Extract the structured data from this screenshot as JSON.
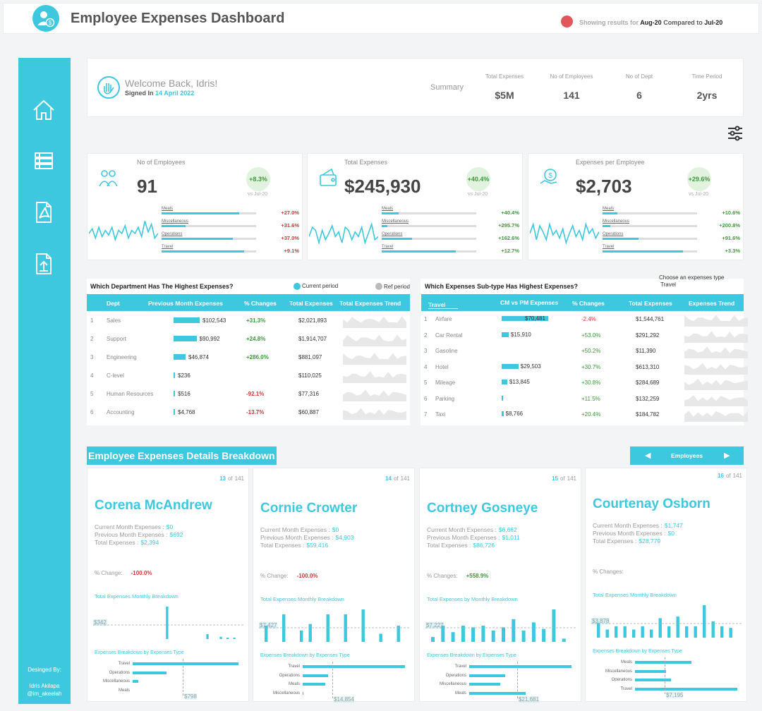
{
  "header": {
    "title": "Employee Expenses Dashboard",
    "status_prefix": "Showing results for",
    "status_period": "Aug-20",
    "status_mid": "Compared to",
    "status_ref": "Jul-20"
  },
  "sidebar": {
    "credit_label": "Desinged By:",
    "credit_name": "Idris Akilapa",
    "credit_handle": "@im_akeelah"
  },
  "welcome": {
    "greeting": "Welcome Back, Idris!",
    "signed_prefix": "Signed In",
    "signed_date": "14 April 2022",
    "summary_label": "Summary",
    "stats": [
      {
        "label": "Total Expenses",
        "value": "$5M"
      },
      {
        "label": "No of Employees",
        "value": "141"
      },
      {
        "label": "No of Dept",
        "value": "6"
      },
      {
        "label": "Time Period",
        "value": "2yrs"
      }
    ]
  },
  "kpis": [
    {
      "title": "No of Employees",
      "value": "91",
      "change": "+8.3%",
      "vs": "vs Jul-20",
      "rows": [
        {
          "label": "Meals",
          "pct": "+27.0%",
          "fill": 0.82,
          "color": "red"
        },
        {
          "label": "Miscellaneous",
          "pct": "+31.6%",
          "fill": 0.25,
          "color": "red"
        },
        {
          "label": "Operations",
          "pct": "+37.0%",
          "fill": 0.75,
          "color": "red"
        },
        {
          "label": "Travel",
          "pct": "+9.1%",
          "fill": 0.87,
          "color": "red"
        }
      ]
    },
    {
      "title": "Total Expenses",
      "value": "$245,930",
      "change": "+40.4%",
      "vs": "vs Jul-20",
      "rows": [
        {
          "label": "Meals",
          "pct": "+40.4%",
          "fill": 0.18,
          "color": "green"
        },
        {
          "label": "Miscellaneous",
          "pct": "+295.7%",
          "fill": 0.06,
          "color": "green"
        },
        {
          "label": "Operations",
          "pct": "+162.6%",
          "fill": 0.32,
          "color": "green"
        },
        {
          "label": "Travel",
          "pct": "+12.7%",
          "fill": 0.78,
          "color": "green"
        }
      ]
    },
    {
      "title": "Expenses per Employee",
      "value": "$2,703",
      "change": "+29.6%",
      "vs": "vs Jul-20",
      "rows": [
        {
          "label": "Meals",
          "pct": "+10.6%",
          "fill": 0.16,
          "color": "green"
        },
        {
          "label": "Miscellaneous",
          "pct": "+200.8%",
          "fill": 0.08,
          "color": "green"
        },
        {
          "label": "Operations",
          "pct": "+91.6%",
          "fill": 0.38,
          "color": "green"
        },
        {
          "label": "Travel",
          "pct": "+3.3%",
          "fill": 0.85,
          "color": "green"
        }
      ]
    }
  ],
  "dept_table": {
    "title": "Which Department Has The Highest Expenses?",
    "legend_current": "Current period",
    "legend_ref": "Ref period",
    "headers": [
      "Dept",
      "Previous Month Expenses",
      "% Changes",
      "Total Expenses",
      "Total Expenses Trend"
    ],
    "rows": [
      {
        "rank": "1",
        "dept": "Sales",
        "prev": "$102,543",
        "prev_fill": 1.0,
        "change": "+31.3%",
        "color": "green",
        "total": "$2,021,893"
      },
      {
        "rank": "2",
        "dept": "Support",
        "prev": "$90,992",
        "prev_fill": 0.88,
        "change": "+24.8%",
        "color": "green",
        "total": "$1,914,707"
      },
      {
        "rank": "3",
        "dept": "Engineering",
        "prev": "$46,874",
        "prev_fill": 0.46,
        "change": "+286.0%",
        "color": "green",
        "total": "$881,097"
      },
      {
        "rank": "4",
        "dept": "C-level",
        "prev": "$236",
        "prev_fill": 0.01,
        "change": "",
        "color": "green",
        "total": "$110,025"
      },
      {
        "rank": "5",
        "dept": "Human Resources",
        "prev": "$516",
        "prev_fill": 0.01,
        "change": "-92.1%",
        "color": "red",
        "total": "$77,316"
      },
      {
        "rank": "6",
        "dept": "Accounting",
        "prev": "$4,768",
        "prev_fill": 0.05,
        "change": "-13.7%",
        "color": "red",
        "total": "$60,887"
      }
    ]
  },
  "subtype_table": {
    "title": "Which Expenses Sub-type Has Highest Expenses?",
    "chooser_label": "Choose an expenses type",
    "chooser_value": "Travel",
    "filter_value": "Travel",
    "headers": [
      "CM vs PM Expenses",
      "% Changes",
      "Total Expenses",
      "Expenses Trend"
    ],
    "rows": [
      {
        "rank": "1",
        "name": "Airfare",
        "cm": "$70,481",
        "fill": 1.0,
        "change": "-2.4%",
        "color": "red",
        "total": "$1,544,761"
      },
      {
        "rank": "2",
        "name": "Car Rental",
        "cm": "$15,910",
        "fill": 0.15,
        "change": "+53.0%",
        "color": "green",
        "total": "$291,292"
      },
      {
        "rank": "3",
        "name": "Gasoline",
        "cm": "",
        "fill": 0,
        "change": "+50.2%",
        "color": "green",
        "total": "$11,390"
      },
      {
        "rank": "4",
        "name": "Hotel",
        "cm": "$29,503",
        "fill": 0.36,
        "change": "+30.7%",
        "color": "green",
        "total": "$613,310"
      },
      {
        "rank": "5",
        "name": "Mileage",
        "cm": "$13,845",
        "fill": 0.12,
        "change": "+30.8%",
        "color": "green",
        "total": "$284,689"
      },
      {
        "rank": "6",
        "name": "Parking",
        "cm": "",
        "fill": 0.01,
        "change": "+11.5%",
        "color": "green",
        "total": "$132,259"
      },
      {
        "rank": "7",
        "name": "Taxi",
        "cm": "$8,766",
        "fill": 0.04,
        "change": "+20.4%",
        "color": "green",
        "total": "$184,782"
      }
    ]
  },
  "breakdown": {
    "title": "Employee Expenses Details Breakdown",
    "selector_label": "Employees",
    "employees": [
      {
        "index": "13",
        "of": "of",
        "total": "141",
        "name": "Corena McAndrew",
        "cm_label": "Current Month Expenses :",
        "cm": "$0",
        "pm_label": "Previous Month Expenses :",
        "pm": "$692",
        "te_label": "Total Expenses :",
        "te": "$2,394",
        "change_label": "% Change:",
        "change": "-100.0%",
        "change_color": "red",
        "monthly_title": "Total Expenses Monthly Breakdown",
        "ref_value": "$342",
        "monthly": [
          0,
          0,
          0,
          0,
          0,
          0,
          0,
          0,
          0,
          0,
          1,
          0,
          0,
          0,
          0,
          0,
          0.15,
          0,
          0.07,
          0.04,
          0.03
        ],
        "type_title": "Expenses Breakdown by Expenses Type",
        "type_ref": "$798",
        "types": [
          {
            "label": "Travel",
            "value": 1.0
          },
          {
            "label": "Operations",
            "value": 0.32
          },
          {
            "label": "Miscellaneous",
            "value": 0.05
          },
          {
            "label": "Meals",
            "value": 0
          }
        ]
      },
      {
        "index": "14",
        "of": "of",
        "total": "141",
        "name": "Cornie Crowter",
        "cm_label": "Current Month Expenses :",
        "cm": "$0",
        "pm_label": "Previous Month Expenses :",
        "pm": "$4,903",
        "te_label": "Total Expenses :",
        "te": "$59,416",
        "change_label": "% Change:",
        "change": "-100.0%",
        "change_color": "red",
        "monthly_title": "Total Expenses Monthly Breakdown",
        "ref_value": "$7,427",
        "monthly": [
          0.5,
          0,
          0.85,
          0,
          0.35,
          0.55,
          0,
          0.85,
          0,
          0.85,
          0,
          1.0,
          0,
          0.25,
          0,
          0.5
        ],
        "type_title": "Expenses Breakdown by Expenses Type",
        "type_ref": "$14,854",
        "types": [
          {
            "label": "Travel",
            "value": 1.0
          },
          {
            "label": "Operations",
            "value": 0.25
          },
          {
            "label": "Meals",
            "value": 0.22
          },
          {
            "label": "Miscellaneous",
            "value": 0.01
          }
        ]
      },
      {
        "index": "15",
        "of": "of",
        "total": "141",
        "name": "Cortney Gosneye",
        "cm_label": "Current Month Expenses :",
        "cm": "$6,662",
        "pm_label": "Previous Month Expenses :",
        "pm": "$1,011",
        "te_label": "Total Expenses :",
        "te": "$86,726",
        "change_label": "% Changes:",
        "change": "+558.9%",
        "change_color": "green",
        "monthly_title": "Total Expenses by Monthly Breakdown",
        "ref_value": "$7,227",
        "monthly": [
          0.15,
          0.5,
          0.3,
          0.5,
          0.45,
          0.5,
          0.35,
          0.45,
          0.7,
          0.35,
          0.6,
          0.4,
          1.0,
          0.1
        ],
        "type_title": "Expenses Breakdown by Expenses Type",
        "type_ref": "$21,681",
        "types": [
          {
            "label": "Travel",
            "value": 1.0
          },
          {
            "label": "Operations",
            "value": 0.35
          },
          {
            "label": "Miscellaneous",
            "value": 0.3
          },
          {
            "label": "Meals",
            "value": 0.55
          }
        ]
      },
      {
        "index": "16",
        "of": "of",
        "total": "141",
        "name": "Courtenay Osborn",
        "cm_label": "Current Month Expenses :",
        "cm": "$1,747",
        "pm_label": "Previous Month Expenses :",
        "pm": "$0",
        "te_label": "Total Expenses :",
        "te": "$28,779",
        "change_label": "% Changes:",
        "change": "",
        "change_color": "green",
        "monthly_title": "Total Expenses Monthly Breakdown",
        "ref_value": "$3,878",
        "monthly": [
          0.45,
          0.25,
          0.35,
          0.35,
          0.25,
          0.35,
          0.25,
          0.6,
          0.35,
          0.65,
          0.35,
          0.35,
          1.0,
          0.5,
          0.35,
          0.3
        ],
        "type_title": "Expenses Breakdown by Expenses Type",
        "type_ref": "$7,195",
        "types": [
          {
            "label": "Meals",
            "value": 0.55
          },
          {
            "label": "Miscellaneous",
            "value": 0.3
          },
          {
            "label": "Operations",
            "value": 0.35
          },
          {
            "label": "Travel",
            "value": 1.0
          }
        ]
      }
    ]
  },
  "colors": {
    "accent": "#3ec8e0",
    "positive": "#3a9a3a",
    "negative": "#d23434",
    "status_dot": "#e0565b"
  }
}
